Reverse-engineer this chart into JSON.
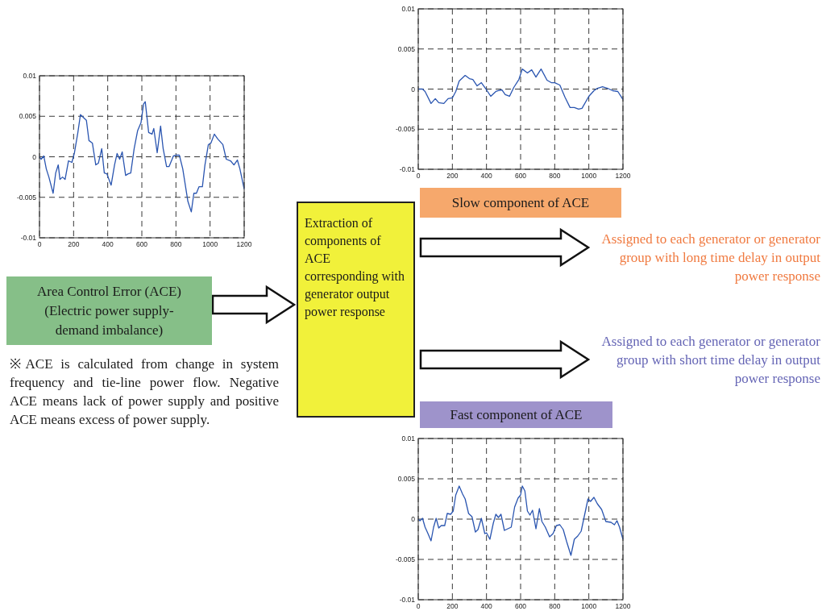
{
  "chart_data": [
    {
      "type": "line",
      "title": "Area Control Error (ACE) (Electric power supply-demand imbalance)",
      "annotations": [
        "※ACE is calculated from change in system frequency and tie-line power flow. Negative ACE means lack of power supply and positive ACE means excess of power supply."
      ],
      "xlim": [
        0,
        1200
      ],
      "xticks": [
        0,
        200,
        400,
        600,
        800,
        1000,
        1200
      ],
      "ylim": [
        -0.01,
        0.01
      ],
      "yticks": [
        -0.01,
        -0.005,
        0,
        0.005,
        0.01
      ],
      "grid": true,
      "line_style": "solid",
      "series": [
        {
          "color": "#2a55b0",
          "x": [
            0,
            10,
            25,
            40,
            55,
            80,
            95,
            110,
            120,
            135,
            150,
            170,
            190,
            205,
            225,
            240,
            260,
            275,
            290,
            310,
            330,
            345,
            365,
            380,
            395,
            420,
            440,
            455,
            470,
            485,
            505,
            520,
            535,
            555,
            575,
            595,
            610,
            620,
            640,
            660,
            670,
            690,
            710,
            725,
            745,
            760,
            785,
            805,
            820,
            840,
            870,
            890,
            905,
            920,
            935,
            955,
            970,
            990,
            1005,
            1025,
            1045,
            1075,
            1095,
            1120,
            1140,
            1160,
            1175,
            1200
          ],
          "values": [
            0,
            -0.0003,
            0.0001,
            -0.0015,
            -0.0025,
            -0.0045,
            -0.002,
            -0.001,
            -0.0028,
            -0.0025,
            -0.0028,
            -0.0005,
            -0.0007,
            0.0005,
            0.003,
            0.0052,
            0.0048,
            0.0045,
            0.002,
            0.0017,
            -0.001,
            -0.0008,
            0.001,
            -0.002,
            -0.0021,
            -0.0035,
            -0.001,
            0.0004,
            -0.0003,
            0.0006,
            -0.0023,
            -0.0021,
            -0.002,
            0.001,
            0.0032,
            0.0042,
            0.0065,
            0.0068,
            0.003,
            0.0028,
            0.0035,
            0.0005,
            0.0038,
            0.001,
            -0.0012,
            -0.0012,
            0.0001,
            0.0002,
            0.0002,
            -0.0015,
            -0.0055,
            -0.0068,
            -0.0045,
            -0.0045,
            -0.0037,
            -0.0037,
            -0.001,
            0.0015,
            0.0017,
            0.0028,
            0.0022,
            0.0015,
            -0.0003,
            -0.0005,
            -0.001,
            -0.0004,
            -0.0015,
            -0.004
          ]
        }
      ]
    },
    {
      "type": "line",
      "title": "Slow component of ACE",
      "annotations": [
        "Assigned to each generator or generator group with long time delay in output power response"
      ],
      "xlim": [
        0,
        1200
      ],
      "xticks": [
        0,
        200,
        400,
        600,
        800,
        1000,
        1200
      ],
      "ylim": [
        -0.01,
        0.01
      ],
      "yticks": [
        -0.01,
        -0.005,
        0,
        0.005,
        0.01
      ],
      "grid": true,
      "line_style": "solid",
      "series": [
        {
          "color": "#2a55b0",
          "x": [
            0,
            25,
            40,
            75,
            100,
            120,
            150,
            175,
            200,
            220,
            240,
            265,
            275,
            300,
            320,
            345,
            370,
            400,
            425,
            455,
            470,
            490,
            510,
            535,
            560,
            590,
            610,
            640,
            665,
            690,
            720,
            755,
            780,
            800,
            830,
            860,
            890,
            915,
            940,
            960,
            1000,
            1030,
            1050,
            1080,
            1110,
            1140,
            1170,
            1200
          ],
          "values": [
            0,
            0,
            -0.0003,
            -0.0018,
            -0.0012,
            -0.0017,
            -0.0018,
            -0.0012,
            -0.0011,
            -0.0003,
            0.001,
            0.0015,
            0.0017,
            0.0013,
            0.0012,
            0.0004,
            0.0008,
            -0.0001,
            -0.0009,
            -0.0003,
            -0.0002,
            -0.0001,
            -0.0007,
            -0.0009,
            0.0002,
            0.0012,
            0.0025,
            0.002,
            0.0024,
            0.0015,
            0.0025,
            0.0011,
            0.0008,
            0.0008,
            0.0005,
            -0.001,
            -0.0023,
            -0.0023,
            -0.0025,
            -0.0024,
            -0.0009,
            -0.0002,
            0.0001,
            0.0003,
            0.0001,
            -0.0002,
            -0.0003,
            -0.0013
          ]
        }
      ]
    },
    {
      "type": "line",
      "title": "Fast component of ACE",
      "annotations": [
        "Assigned to each generator or generator group with short time delay in output power response"
      ],
      "xlim": [
        0,
        1200
      ],
      "xticks": [
        0,
        200,
        400,
        600,
        800,
        1000,
        1200
      ],
      "ylim": [
        -0.01,
        0.01
      ],
      "yticks": [
        -0.01,
        -0.005,
        0,
        0.005,
        0.01
      ],
      "grid": true,
      "line_style": "solid",
      "series": [
        {
          "color": "#2a55b0",
          "x": [
            0,
            10,
            25,
            40,
            55,
            75,
            90,
            105,
            120,
            135,
            155,
            170,
            190,
            205,
            220,
            240,
            260,
            275,
            295,
            315,
            335,
            350,
            370,
            390,
            400,
            420,
            440,
            455,
            470,
            485,
            505,
            525,
            545,
            565,
            585,
            600,
            610,
            625,
            640,
            655,
            670,
            690,
            710,
            725,
            745,
            770,
            790,
            810,
            830,
            850,
            870,
            895,
            915,
            935,
            955,
            975,
            995,
            1010,
            1030,
            1050,
            1075,
            1100,
            1130,
            1150,
            1165,
            1180,
            1200
          ],
          "values": [
            0,
            -0.0002,
            0.0001,
            -0.001,
            -0.0017,
            -0.0027,
            -0.001,
            0.0001,
            -0.0011,
            -0.0008,
            -0.0008,
            0.0007,
            0.0006,
            0.001,
            0.003,
            0.0041,
            0.0031,
            0.0025,
            0.0007,
            0.0003,
            -0.0016,
            -0.0013,
            0.0001,
            -0.0018,
            -0.0017,
            -0.0025,
            -0.0005,
            0.0006,
            0.0002,
            0.0006,
            -0.0014,
            -0.0012,
            -0.001,
            0.0015,
            0.0026,
            0.003,
            0.0041,
            0.0035,
            0.001,
            0.0005,
            0.0011,
            -0.0012,
            0.0013,
            -0.0003,
            -0.001,
            -0.0022,
            -0.0018,
            -0.0008,
            -0.0007,
            -0.0013,
            -0.0028,
            -0.0045,
            -0.0025,
            -0.0021,
            -0.0015,
            0.0005,
            0.0025,
            0.0022,
            0.0027,
            0.0019,
            0.0012,
            -0.0003,
            -0.0004,
            -0.0007,
            -0.0002,
            -0.001,
            -0.0025
          ]
        }
      ]
    },
    {
      "type": "other",
      "annotations": [
        "Extraction of components of ACE corresponding with generator output power response"
      ]
    }
  ]
}
